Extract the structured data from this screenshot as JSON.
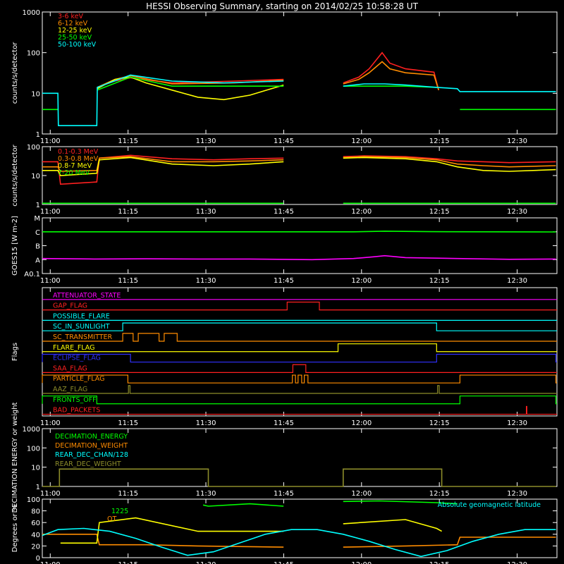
{
  "title": "HESSI Observing Summary, starting on 2014/02/25 10:58:28 UT",
  "time_ticks": [
    "11:00",
    "11:15",
    "11:30",
    "11:45",
    "12:00",
    "12:15",
    "12:30"
  ],
  "time_tick_minutes": [
    1.53,
    16.53,
    31.53,
    46.53,
    61.53,
    76.53,
    91.53
  ],
  "time_range_minutes": [
    0,
    99.2
  ],
  "colors": {
    "background": "#000000",
    "axis": "#ffffff",
    "red": "#ff2020",
    "orange": "#ff8c00",
    "yellow": "#ffff00",
    "green": "#00ff00",
    "cyan": "#00ffff",
    "magenta": "#ff00ff",
    "blue": "#3030ff",
    "olive": "#8c8c2a"
  },
  "chart_data": [
    {
      "type": "line",
      "id": "low-energy",
      "title": "",
      "ylabel": "counts/s/detector",
      "yscale": "log",
      "ylim": [
        1,
        1000
      ],
      "yticks": [
        1,
        10,
        100,
        1000
      ],
      "ytick_labels": [
        "1",
        "10",
        "100",
        "1000"
      ],
      "legend_position": "top-left",
      "series": [
        {
          "name": "3-6 keV",
          "color": "#ff2020",
          "x": [
            10.5,
            10.6,
            14,
            17,
            25,
            37,
            46.5,
            57,
            58,
            61,
            63,
            65.5,
            67,
            70,
            75.5,
            76.4,
            80
          ],
          "y": [
            null,
            14,
            20,
            24,
            18,
            20,
            22,
            null,
            18,
            25,
            40,
            100,
            55,
            40,
            33,
            12,
            null
          ]
        },
        {
          "name": "6-12 keV",
          "color": "#ff8c00",
          "x": [
            10.5,
            10.6,
            14,
            17,
            25,
            37,
            46.5,
            57,
            58,
            61,
            63,
            65.5,
            67,
            70,
            75.5,
            76.4,
            80
          ],
          "y": [
            null,
            14,
            22,
            27,
            17,
            18,
            21,
            null,
            17,
            22,
            32,
            60,
            40,
            32,
            28,
            12,
            null
          ]
        },
        {
          "name": "12-25 keV",
          "color": "#ffff00",
          "x": [
            10.5,
            10.6,
            14,
            17,
            20,
            25,
            30,
            35,
            40,
            46.5
          ],
          "y": [
            null,
            13,
            22,
            25,
            18,
            12,
            8,
            7,
            9,
            16
          ]
        },
        {
          "name": "25-50 keV",
          "color": "#00ff00",
          "x": [
            0,
            3,
            3.1,
            10.5,
            10.6,
            17,
            25,
            46.5,
            57,
            58,
            62,
            70,
            76,
            80,
            80.5,
            90,
            99
          ],
          "y": [
            4,
            4,
            null,
            null,
            12,
            25,
            15,
            15,
            null,
            15,
            15,
            15,
            14,
            null,
            4,
            4,
            4
          ]
        },
        {
          "name": "50-100 keV",
          "color": "#00ffff",
          "x": [
            0,
            3,
            3.1,
            10.5,
            10.6,
            17,
            25,
            35,
            46.5,
            57,
            58,
            62,
            66,
            70,
            76,
            80,
            80.5,
            90,
            99
          ],
          "y": [
            10,
            10,
            1.6,
            1.6,
            14,
            28,
            20,
            18,
            20,
            null,
            15,
            17,
            17,
            16,
            14,
            13,
            11,
            11,
            11
          ]
        }
      ]
    },
    {
      "type": "line",
      "id": "high-energy",
      "title": "",
      "ylabel": "counts/s/detector",
      "yscale": "log",
      "ylim": [
        1,
        100
      ],
      "yticks": [
        1,
        10,
        100
      ],
      "ytick_labels": [
        "1",
        "10",
        "100"
      ],
      "legend_position": "top-left",
      "series": [
        {
          "name": "0.1-0.3 MeV",
          "color": "#ff2020",
          "x": [
            0,
            3,
            3.5,
            10.5,
            11,
            17,
            25,
            33,
            40,
            46.5,
            57,
            58,
            62,
            70,
            76,
            80,
            85,
            90,
            99
          ],
          "y": [
            30,
            30,
            5,
            6,
            40,
            50,
            38,
            35,
            38,
            40,
            null,
            45,
            48,
            45,
            38,
            32,
            30,
            28,
            30
          ]
        },
        {
          "name": "0.3-0.8 MeV",
          "color": "#ff8c00",
          "x": [
            0,
            3,
            3.5,
            10.5,
            11,
            17,
            25,
            33,
            40,
            46.5,
            57,
            58,
            62,
            70,
            76,
            80,
            85,
            90,
            99
          ],
          "y": [
            20,
            20,
            14,
            15,
            40,
            45,
            30,
            30,
            32,
            35,
            null,
            42,
            45,
            42,
            35,
            25,
            22,
            20,
            22
          ]
        },
        {
          "name": "0.8-7 MeV",
          "color": "#ffff00",
          "x": [
            0,
            3,
            3.5,
            10.5,
            11,
            17,
            25,
            33,
            40,
            46.5,
            57,
            58,
            62,
            70,
            76,
            80,
            85,
            90,
            99
          ],
          "y": [
            15,
            15,
            10,
            12,
            35,
            42,
            25,
            22,
            25,
            30,
            null,
            40,
            42,
            38,
            30,
            20,
            15,
            14,
            16
          ]
        },
        {
          "name": "7-20 MeV",
          "color": "#00ff00",
          "x": [
            0,
            46.5,
            47,
            57,
            58,
            99
          ],
          "y": [
            1.1,
            1.1,
            null,
            null,
            1.1,
            1.1
          ]
        }
      ]
    },
    {
      "type": "line",
      "id": "goes",
      "title": "",
      "ylabel": "GOES15 [W m-2]",
      "yscale": "log",
      "ylim": [
        1e-09,
        1e-05
      ],
      "yticks": [
        1e-09,
        1e-08,
        1e-07,
        1e-06,
        1e-05
      ],
      "ytick_labels": [
        "A0.1",
        "A",
        "B",
        "C",
        "M"
      ],
      "series": [
        {
          "name": "",
          "color": "#00ff00",
          "x": [
            0,
            30,
            60,
            66,
            75,
            99
          ],
          "y": [
            1e-06,
            1e-06,
            1e-06,
            1.1e-06,
            1.02e-06,
            9.7e-07
          ]
        },
        {
          "name": "",
          "color": "#ff00ff",
          "x": [
            0,
            10,
            20,
            30,
            40,
            52,
            60,
            64,
            66,
            70,
            80,
            90,
            99
          ],
          "y": [
            1.2e-08,
            1.1e-08,
            1.15e-08,
            1.1e-08,
            1.1e-08,
            1e-08,
            1.2e-08,
            1.6e-08,
            1.9e-08,
            1.4e-08,
            1.2e-08,
            1.05e-08,
            1.1e-08
          ]
        }
      ]
    },
    {
      "type": "line",
      "id": "flags",
      "title": "",
      "ylabel": "Flags",
      "flags": [
        {
          "name": "ATTENUATOR_STATE",
          "color": "#ff00ff",
          "on": []
        },
        {
          "name": "GAP_FLAG",
          "color": "#ff2020",
          "on": [
            [
              47.2,
              53.4
            ]
          ]
        },
        {
          "name": "POSSIBLE_FLARE",
          "color": "#00ffff",
          "on": []
        },
        {
          "name": "SC_IN_SUNLIGHT",
          "color": "#00ffff",
          "on": [
            [
              15.5,
              76
            ]
          ]
        },
        {
          "name": "SC_TRANSMITTER",
          "color": "#ff8c00",
          "on": [
            [
              15.5,
              17.5
            ],
            [
              18.5,
              22.5
            ],
            [
              23.5,
              26
            ]
          ]
        },
        {
          "name": "FLARE_FLAG",
          "color": "#ffff00",
          "on": [
            [
              57,
              76
            ]
          ]
        },
        {
          "name": "ECLIPSE_FLAG",
          "color": "#3030ff",
          "on": [
            [
              0,
              17
            ],
            [
              76,
              99
            ]
          ]
        },
        {
          "name": "SAA_FLAG",
          "color": "#ff2020",
          "on": [
            [
              48.3,
              50.8
            ]
          ]
        },
        {
          "name": "PARTICLE_FLAG",
          "color": "#ff8c00",
          "on": [
            [
              0,
              16.5
            ],
            [
              48.2,
              48.8
            ],
            [
              49.3,
              50
            ],
            [
              50.5,
              51.2
            ],
            [
              80.5,
              99
            ]
          ]
        },
        {
          "name": "AAZ_FLAG",
          "color": "#8c8c2a",
          "on": [
            [
              16.6,
              16.9
            ],
            [
              76.2,
              76.5
            ]
          ]
        },
        {
          "name": "FRONTS_OFF",
          "color": "#00ff00",
          "on": [
            [
              0,
              10.5
            ],
            [
              80.5,
              99
            ]
          ]
        },
        {
          "name": "BAD_PACKETS",
          "color": "#ff2020",
          "on": [
            [
              93.3,
              93.4
            ]
          ]
        }
      ]
    },
    {
      "type": "line",
      "id": "decimation",
      "title": "",
      "ylabel": "DECIMATION ENERGY or weight",
      "yscale": "log",
      "ylim": [
        1,
        1000
      ],
      "yticks": [
        1,
        10,
        100,
        1000
      ],
      "ytick_labels": [
        "1",
        "10",
        "100",
        "1000"
      ],
      "legend_position": "top-left",
      "series": [
        {
          "name": "DECIMATION_ENERGY",
          "color": "#00ff00",
          "x": [],
          "y": []
        },
        {
          "name": "DECIMATION_WEIGHT",
          "color": "#ff8c00",
          "x": [],
          "y": []
        },
        {
          "name": "REAR_DEC_CHAN/128",
          "color": "#00ffff",
          "x": [],
          "y": []
        },
        {
          "name": "REAR_DEC_WEIGHT",
          "color": "#8c8c2a",
          "x": [
            0,
            3.3,
            3.3,
            32,
            32,
            58,
            58,
            77,
            77,
            99
          ],
          "y": [
            1,
            1,
            8,
            8,
            1,
            1,
            8,
            8,
            1,
            1
          ]
        }
      ]
    },
    {
      "type": "line",
      "id": "orbit",
      "title": "",
      "ylabel": "Degrees or %",
      "ylim": [
        0,
        100
      ],
      "yticks": [
        0,
        20,
        40,
        60,
        80,
        100
      ],
      "ytick_labels": [
        "0",
        "20",
        "40",
        "60",
        "80",
        "100"
      ],
      "legend_position": "top-left",
      "annotation": "Absolute geomagnetic latitude",
      "series": [
        {
          "name": "",
          "color": "#ff8c00",
          "x": [
            0,
            10.5,
            11,
            20,
            30,
            46.5,
            57,
            58,
            70,
            80,
            80.5,
            99
          ],
          "y": [
            40,
            40,
            22,
            22,
            20,
            18,
            null,
            18,
            20,
            22,
            35,
            35
          ]
        },
        {
          "name": "",
          "color": "#ffff00",
          "x": [
            0,
            3,
            3.5,
            10.5,
            11,
            18,
            30,
            46.5,
            57,
            58,
            70,
            76,
            77,
            80
          ],
          "y": [
            null,
            null,
            25,
            25,
            60,
            68,
            45,
            45,
            null,
            58,
            65,
            50,
            45,
            null
          ]
        },
        {
          "name": "",
          "color": "#00ff00",
          "x": [
            30,
            31,
            32,
            40,
            46.5,
            57,
            58,
            65,
            76,
            80
          ],
          "y": [
            null,
            90,
            88,
            92,
            88,
            null,
            96,
            97,
            94,
            92
          ]
        },
        {
          "name": "",
          "color": "#00ffff",
          "x": [
            0,
            3,
            8,
            13,
            18,
            23,
            28,
            33,
            38,
            43,
            48,
            53,
            58,
            63,
            68,
            73,
            78,
            83,
            88,
            93,
            99
          ],
          "y": [
            38,
            48,
            50,
            45,
            33,
            18,
            4,
            10,
            25,
            40,
            48,
            48,
            40,
            28,
            14,
            2,
            12,
            28,
            40,
            48,
            48
          ]
        }
      ]
    }
  ],
  "legend_panel1": [
    "3-6 keV",
    "6-12 keV",
    "12-25 keV",
    "25-50 keV",
    "50-100 keV"
  ],
  "legend_panel2": [
    "0.1-0.3 MeV",
    "0.3-0.8 MeV",
    "0.8-7 MeV",
    "7-20 MeV"
  ],
  "legend_panel5": [
    "DECIMATION_ENERGY",
    "DECIMATION_WEIGHT",
    "REAR_DEC_CHAN/128",
    "REAR_DEC_WEIGHT"
  ],
  "orbit_labels": [
    "1225",
    "OT"
  ]
}
